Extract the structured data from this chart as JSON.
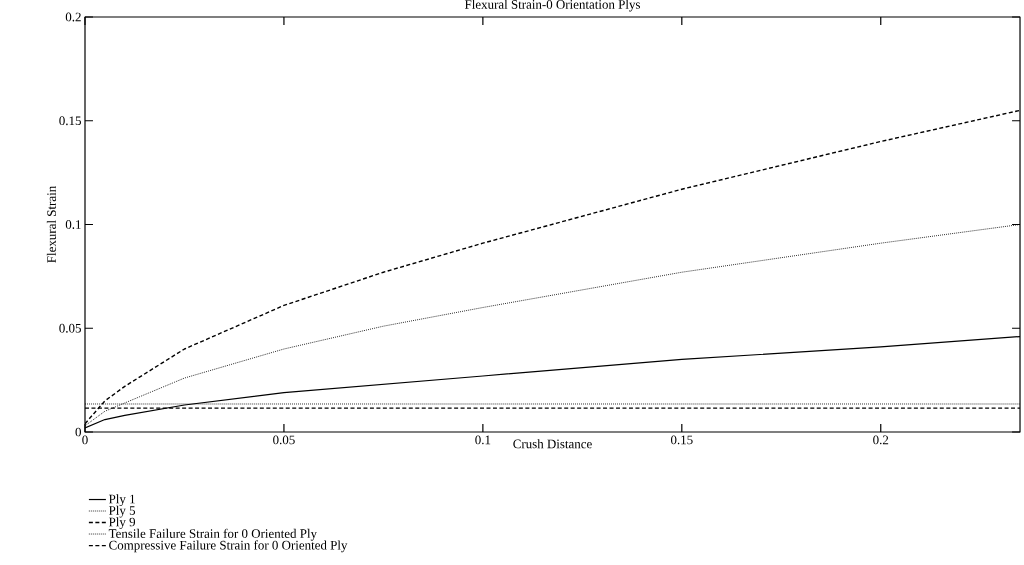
{
  "chart_data": {
    "type": "line",
    "title": "Flexural Strain-0 Orientation Plys",
    "xlabel": "Crush Distance",
    "ylabel": "Flexural Strain",
    "xlim": [
      0,
      0.235
    ],
    "ylim": [
      0,
      0.2
    ],
    "xticks": [
      0,
      0.05,
      0.1,
      0.15,
      0.2
    ],
    "yticks": [
      0,
      0.05,
      0.1,
      0.15,
      0.2
    ],
    "grid": false,
    "legend": "bottom left",
    "marker": "none",
    "series": [
      {
        "name": "Ply 1",
        "color": "#000000",
        "line_style": "solid",
        "x": [
          0,
          0.005,
          0.01,
          0.025,
          0.05,
          0.075,
          0.1,
          0.15,
          0.2,
          0.235
        ],
        "values": [
          0.002,
          0.006,
          0.008,
          0.013,
          0.019,
          0.023,
          0.027,
          0.035,
          0.041,
          0.046
        ]
      },
      {
        "name": "Ply 5",
        "color": "#000000",
        "line_style": "dotted",
        "x": [
          0,
          0.005,
          0.01,
          0.025,
          0.05,
          0.075,
          0.1,
          0.15,
          0.2,
          0.235
        ],
        "values": [
          0.003,
          0.01,
          0.014,
          0.026,
          0.04,
          0.051,
          0.06,
          0.077,
          0.091,
          0.1
        ]
      },
      {
        "name": "Ply 9",
        "color": "#000000",
        "line_style": "dashed",
        "x": [
          0,
          0.005,
          0.01,
          0.025,
          0.05,
          0.075,
          0.1,
          0.15,
          0.2,
          0.235
        ],
        "values": [
          0.004,
          0.015,
          0.022,
          0.04,
          0.061,
          0.077,
          0.091,
          0.117,
          0.14,
          0.155
        ]
      },
      {
        "name": "Tensile Failure Strain for 0 Oriented Ply",
        "color": "#000000",
        "line_style": "dotted",
        "x": [
          0,
          0.235
        ],
        "values": [
          0.0135,
          0.0135
        ]
      },
      {
        "name": "Compressive Failure Strain for 0 Oriented Ply",
        "color": "#000000",
        "line_style": "dashed",
        "x": [
          0,
          0.235
        ],
        "values": [
          0.0115,
          0.0115
        ]
      }
    ]
  }
}
